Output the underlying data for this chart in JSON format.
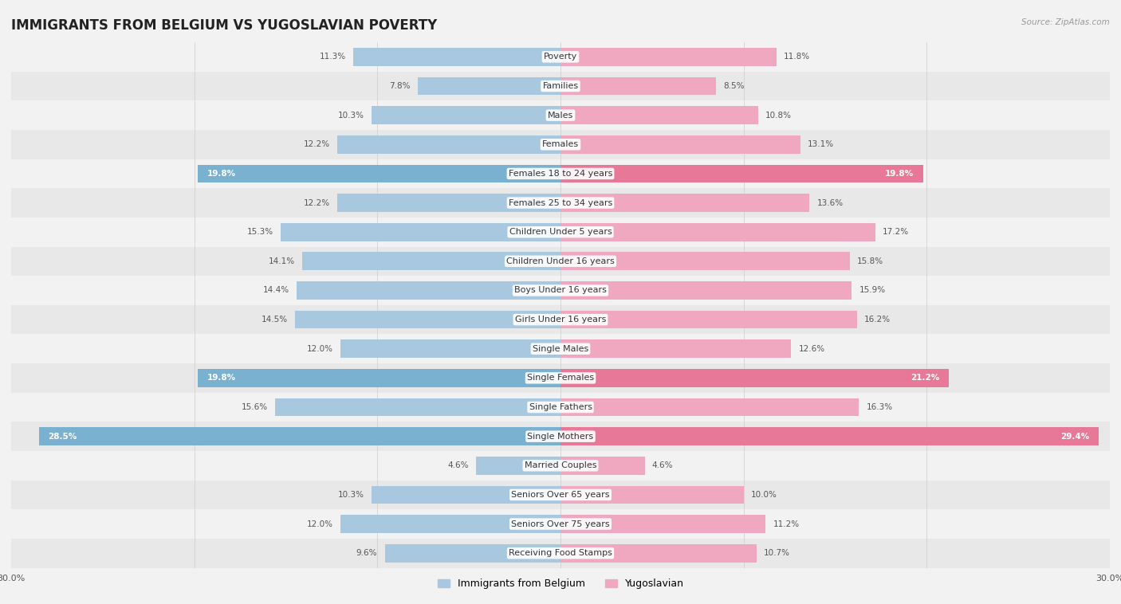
{
  "title": "IMMIGRANTS FROM BELGIUM VS YUGOSLAVIAN POVERTY",
  "source": "Source: ZipAtlas.com",
  "categories": [
    "Poverty",
    "Families",
    "Males",
    "Females",
    "Females 18 to 24 years",
    "Females 25 to 34 years",
    "Children Under 5 years",
    "Children Under 16 years",
    "Boys Under 16 years",
    "Girls Under 16 years",
    "Single Males",
    "Single Females",
    "Single Fathers",
    "Single Mothers",
    "Married Couples",
    "Seniors Over 65 years",
    "Seniors Over 75 years",
    "Receiving Food Stamps"
  ],
  "belgium_values": [
    11.3,
    7.8,
    10.3,
    12.2,
    19.8,
    12.2,
    15.3,
    14.1,
    14.4,
    14.5,
    12.0,
    19.8,
    15.6,
    28.5,
    4.6,
    10.3,
    12.0,
    9.6
  ],
  "yugoslavian_values": [
    11.8,
    8.5,
    10.8,
    13.1,
    19.8,
    13.6,
    17.2,
    15.8,
    15.9,
    16.2,
    12.6,
    21.2,
    16.3,
    29.4,
    4.6,
    10.0,
    11.2,
    10.7
  ],
  "belgium_color": "#a8c8e0",
  "yugoslavian_color": "#f0a8c0",
  "belgium_highlight_color": "#7ab0d0",
  "yugoslavian_highlight_color": "#e87898",
  "highlight_indices": [
    4,
    11,
    13
  ],
  "xlim": 30.0,
  "bar_height": 0.62,
  "bg_color": "#f2f2f2",
  "row_alt_color": "#e8e8e8",
  "row_main_color": "#f2f2f2",
  "legend_belgium": "Immigrants from Belgium",
  "legend_yugoslavian": "Yugoslavian",
  "title_fontsize": 12,
  "label_fontsize": 8,
  "value_fontsize": 7.5,
  "xtick_fontsize": 8
}
